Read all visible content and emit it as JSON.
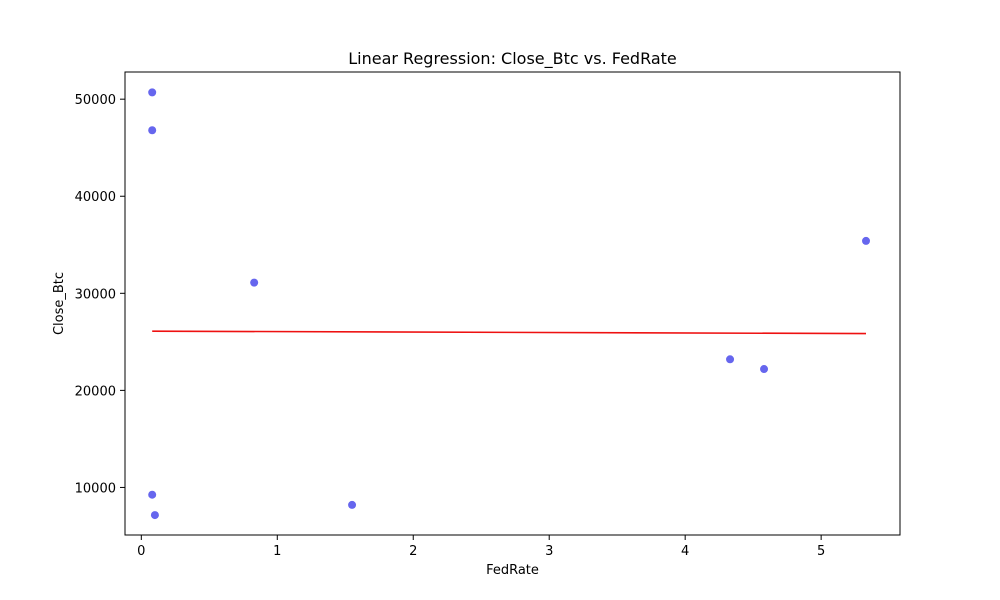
{
  "chart_data": {
    "type": "scatter",
    "title": "Linear Regression: Close_Btc vs. FedRate",
    "xlabel": "FedRate",
    "ylabel": "Close_Btc",
    "xlim": [
      -0.12,
      5.58
    ],
    "ylim": [
      5100,
      52800
    ],
    "xticks": [
      0,
      1,
      2,
      3,
      4,
      5
    ],
    "yticks": [
      10000,
      20000,
      30000,
      40000,
      50000
    ],
    "grid": false,
    "legend": "none",
    "points": [
      {
        "x": 0.08,
        "y": 50700
      },
      {
        "x": 0.08,
        "y": 46800
      },
      {
        "x": 0.83,
        "y": 31100
      },
      {
        "x": 5.33,
        "y": 35400
      },
      {
        "x": 4.33,
        "y": 23200
      },
      {
        "x": 4.58,
        "y": 22200
      },
      {
        "x": 0.08,
        "y": 9250
      },
      {
        "x": 0.1,
        "y": 7150
      },
      {
        "x": 1.55,
        "y": 8200
      }
    ],
    "regression": {
      "x": [
        0.08,
        5.33
      ],
      "y": [
        26100,
        25850
      ]
    },
    "colors": {
      "points": "#6666ee",
      "regression": "#ee1111",
      "axes": "#000000"
    }
  }
}
